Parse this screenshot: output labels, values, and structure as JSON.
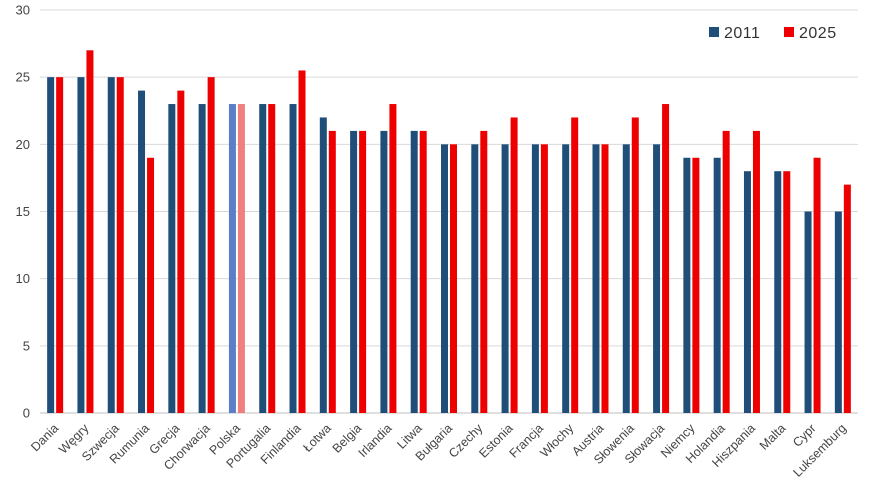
{
  "chart_data": {
    "type": "bar",
    "title": "",
    "xlabel": "",
    "ylabel": "",
    "ylim": [
      0,
      30
    ],
    "yticks": [
      0,
      5,
      10,
      15,
      20,
      25,
      30
    ],
    "grid": true,
    "legend_position": "top-right",
    "highlight_category": "Polska",
    "categories": [
      "Dania",
      "Węgry",
      "Szwecja",
      "Rumunia",
      "Grecja",
      "Chorwacja",
      "Polska",
      "Portugalia",
      "Finlandia",
      "Łotwa",
      "Belgia",
      "Irlandia",
      "Litwa",
      "Bułgaria",
      "Czechy",
      "Estonia",
      "Francja",
      "Włochy",
      "Austria",
      "Słowenia",
      "Słowacja",
      "Niemcy",
      "Holandia",
      "Hiszpania",
      "Malta",
      "Cypr",
      "Luksemburg"
    ],
    "series": [
      {
        "name": "2011",
        "color": "#1f4e79",
        "highlight_color": "#5b7ec9",
        "values": [
          25,
          25,
          25,
          24,
          23,
          23,
          23,
          23,
          23,
          22,
          21,
          21,
          21,
          20,
          20,
          20,
          20,
          20,
          20,
          20,
          20,
          19,
          19,
          18,
          18,
          15,
          15
        ]
      },
      {
        "name": "2025",
        "color": "#ee0000",
        "highlight_color": "#f08080",
        "values": [
          25,
          27,
          25,
          19,
          24,
          25,
          23,
          23,
          25.5,
          21,
          21,
          23,
          21,
          20,
          21,
          22,
          20,
          22,
          20,
          22,
          23,
          19,
          21,
          21,
          18,
          19,
          17
        ]
      }
    ]
  }
}
